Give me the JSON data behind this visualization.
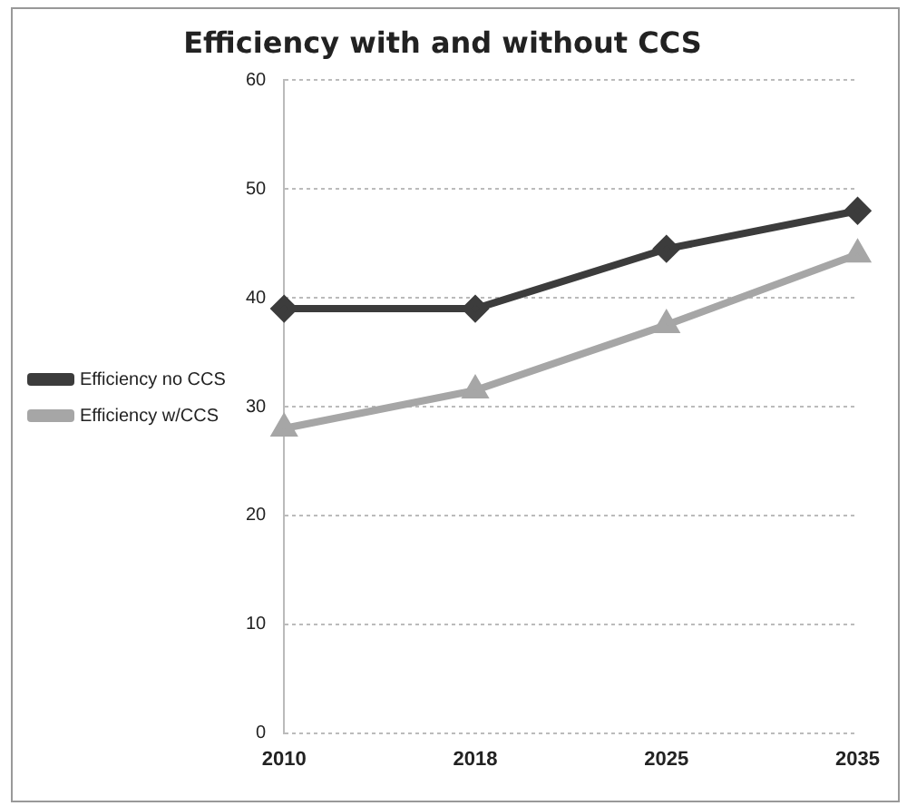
{
  "chart_data": {
    "type": "line",
    "title": "Efficiency with and without CCS",
    "categories": [
      "2010",
      "2018",
      "2025",
      "2035"
    ],
    "series": [
      {
        "name": "Efficiency no CCS",
        "color": "#3c3c3c",
        "marker": "diamond",
        "values": [
          39,
          39,
          44.5,
          48
        ]
      },
      {
        "name": "Efficiency w/CCS",
        "color": "#a6a6a6",
        "marker": "triangle",
        "values": [
          28,
          31.5,
          37.5,
          44
        ]
      }
    ],
    "ylim": [
      0,
      60
    ],
    "yticks": [
      0,
      10,
      20,
      30,
      40,
      50,
      60
    ],
    "grid": "y",
    "legend": "left"
  }
}
